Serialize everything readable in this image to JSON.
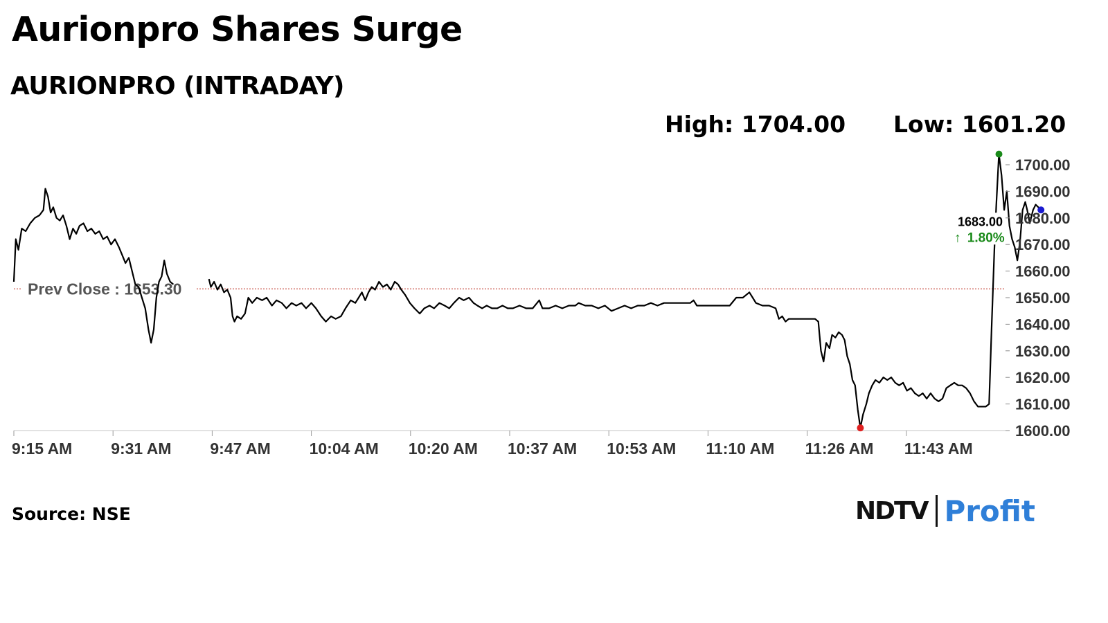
{
  "header": {
    "title": "Aurionpro Shares Surge",
    "subtitle": "AURIONPRO (INTRADAY)",
    "high_text": "High: 1704.00",
    "low_text": "Low: 1601.20"
  },
  "footer": {
    "source": "Source: NSE",
    "logo_ndtv": "NDTV",
    "logo_profit": "Profit"
  },
  "colors": {
    "line": "#000000",
    "prev_close_line": "#c0392b",
    "high_marker": "#1a8a1a",
    "low_marker": "#e02020",
    "last_marker": "#1a1ad0",
    "change_text": "#1a8a1a",
    "logo_profit_start": "#2f7fd8",
    "logo_profit_end": "#e0308a"
  },
  "chart_data": {
    "type": "line",
    "title": "AURIONPRO (INTRADAY)",
    "xlabel": "",
    "ylabel": "",
    "x_ticks": [
      "9:15 AM",
      "9:31 AM",
      "9:47 AM",
      "10:04 AM",
      "10:20 AM",
      "10:37 AM",
      "10:53 AM",
      "11:10 AM",
      "11:26 AM",
      "11:43 AM"
    ],
    "y_ticks": [
      "1600.00",
      "1610.00",
      "1620.00",
      "1630.00",
      "1640.00",
      "1650.00",
      "1660.00",
      "1670.00",
      "1680.00",
      "1690.00",
      "1700.00"
    ],
    "ylim": [
      1600,
      1700
    ],
    "x_minutes_range": [
      555,
      706
    ],
    "prev_close": 1653.3,
    "prev_close_label": "Prev Close : 1653.30",
    "high": 1704.0,
    "low": 1601.2,
    "last_value": "1683.00",
    "change_pct": "1.80%",
    "change_arrow": "↑",
    "series": [
      {
        "points": [
          [
            555,
            1656
          ],
          [
            555.3,
            1672
          ],
          [
            555.7,
            1668
          ],
          [
            556.2,
            1676
          ],
          [
            556.8,
            1675
          ],
          [
            557.5,
            1678
          ],
          [
            558.2,
            1680
          ],
          [
            558.9,
            1681
          ],
          [
            559.5,
            1683
          ],
          [
            559.8,
            1691
          ],
          [
            560.2,
            1688
          ],
          [
            560.6,
            1682
          ],
          [
            561.0,
            1684
          ],
          [
            561.5,
            1680
          ],
          [
            562.0,
            1679
          ],
          [
            562.5,
            1681
          ],
          [
            563.0,
            1677
          ],
          [
            563.5,
            1672
          ],
          [
            564.0,
            1676
          ],
          [
            564.5,
            1674
          ],
          [
            565.0,
            1677
          ],
          [
            565.6,
            1678
          ],
          [
            566.2,
            1675
          ],
          [
            566.8,
            1676
          ],
          [
            567.4,
            1674
          ],
          [
            568.0,
            1675
          ],
          [
            568.6,
            1672
          ],
          [
            569.2,
            1673
          ],
          [
            569.8,
            1670
          ],
          [
            570.4,
            1672
          ],
          [
            571.0,
            1669
          ],
          [
            571.5,
            1666
          ],
          [
            572.0,
            1663
          ],
          [
            572.5,
            1665
          ],
          [
            573.0,
            1660
          ],
          [
            573.5,
            1655
          ],
          [
            574.0,
            1654
          ],
          [
            574.5,
            1650
          ],
          [
            575.0,
            1646
          ],
          [
            575.5,
            1638
          ],
          [
            575.9,
            1633
          ],
          [
            576.3,
            1638
          ],
          [
            576.7,
            1650
          ],
          [
            577.1,
            1656
          ],
          [
            577.5,
            1658
          ],
          [
            577.9,
            1664
          ],
          [
            578.3,
            1659
          ],
          [
            578.8,
            1656
          ],
          [
            579.3,
            1655
          ],
          [
            584.7,
            1657
          ],
          [
            585.0,
            1654
          ],
          [
            585.5,
            1656
          ],
          [
            586.0,
            1653
          ],
          [
            586.5,
            1655
          ],
          [
            587.0,
            1652
          ],
          [
            587.5,
            1653
          ],
          [
            588.0,
            1650
          ],
          [
            588.3,
            1643
          ],
          [
            588.6,
            1641
          ],
          [
            589.0,
            1643
          ],
          [
            589.6,
            1642
          ],
          [
            590.2,
            1644
          ],
          [
            590.7,
            1650
          ],
          [
            591.3,
            1648
          ],
          [
            592.0,
            1650
          ],
          [
            592.8,
            1649
          ],
          [
            593.5,
            1650
          ],
          [
            594.3,
            1647
          ],
          [
            595.0,
            1649
          ],
          [
            595.8,
            1648
          ],
          [
            596.5,
            1646
          ],
          [
            597.3,
            1648
          ],
          [
            598.0,
            1647
          ],
          [
            598.8,
            1648
          ],
          [
            599.5,
            1646
          ],
          [
            600.3,
            1648
          ],
          [
            601.0,
            1646
          ],
          [
            601.8,
            1643
          ],
          [
            602.5,
            1641
          ],
          [
            603.3,
            1643
          ],
          [
            604.0,
            1642
          ],
          [
            604.8,
            1643
          ],
          [
            605.5,
            1646
          ],
          [
            606.3,
            1649
          ],
          [
            607.0,
            1648
          ],
          [
            607.5,
            1650
          ],
          [
            608.0,
            1652
          ],
          [
            608.5,
            1649
          ],
          [
            609.0,
            1652
          ],
          [
            609.5,
            1654
          ],
          [
            610.0,
            1653
          ],
          [
            610.6,
            1656
          ],
          [
            611.2,
            1654
          ],
          [
            611.8,
            1655
          ],
          [
            612.4,
            1653
          ],
          [
            613.0,
            1656
          ],
          [
            613.5,
            1655
          ],
          [
            614.0,
            1653
          ],
          [
            614.6,
            1651
          ],
          [
            615.3,
            1648
          ],
          [
            616.0,
            1646
          ],
          [
            616.8,
            1644
          ],
          [
            617.5,
            1646
          ],
          [
            618.3,
            1647
          ],
          [
            619.0,
            1646
          ],
          [
            619.8,
            1648
          ],
          [
            620.6,
            1647
          ],
          [
            621.3,
            1646
          ],
          [
            622.0,
            1648
          ],
          [
            622.8,
            1650
          ],
          [
            623.5,
            1649
          ],
          [
            624.3,
            1650
          ],
          [
            625.0,
            1648
          ],
          [
            625.6,
            1647
          ],
          [
            626.3,
            1646
          ],
          [
            627.0,
            1647
          ],
          [
            627.8,
            1646
          ],
          [
            628.6,
            1646
          ],
          [
            629.4,
            1647
          ],
          [
            630.2,
            1646
          ],
          [
            631.0,
            1646
          ],
          [
            632.0,
            1647
          ],
          [
            633.0,
            1646
          ],
          [
            634.0,
            1646
          ],
          [
            635.0,
            1649
          ],
          [
            635.5,
            1646
          ],
          [
            636.5,
            1646
          ],
          [
            637.5,
            1647
          ],
          [
            638.5,
            1646
          ],
          [
            639.5,
            1647
          ],
          [
            640.5,
            1647
          ],
          [
            641.0,
            1648
          ],
          [
            642.0,
            1647
          ],
          [
            643.0,
            1647
          ],
          [
            644.0,
            1646
          ],
          [
            645.0,
            1647
          ],
          [
            646.0,
            1645
          ],
          [
            647.0,
            1646
          ],
          [
            648.0,
            1647
          ],
          [
            649.0,
            1646
          ],
          [
            650.0,
            1647
          ],
          [
            651.0,
            1647
          ],
          [
            652.0,
            1648
          ],
          [
            653.0,
            1647
          ],
          [
            654.0,
            1648
          ],
          [
            655.0,
            1648
          ],
          [
            656.0,
            1648
          ],
          [
            657.0,
            1648
          ],
          [
            658.0,
            1648
          ],
          [
            658.5,
            1649
          ],
          [
            659.0,
            1647
          ],
          [
            660.0,
            1647
          ],
          [
            661.0,
            1647
          ],
          [
            662.0,
            1647
          ],
          [
            663.0,
            1647
          ],
          [
            664.0,
            1647
          ],
          [
            665.0,
            1650
          ],
          [
            666.0,
            1650
          ],
          [
            667.0,
            1652
          ],
          [
            667.5,
            1650
          ],
          [
            668.0,
            1648
          ],
          [
            669.0,
            1647
          ],
          [
            670.0,
            1647
          ],
          [
            671.0,
            1646
          ],
          [
            671.5,
            1642
          ],
          [
            672.0,
            1643
          ],
          [
            672.5,
            1641
          ],
          [
            673.0,
            1642
          ],
          [
            674.0,
            1642
          ],
          [
            675.0,
            1642
          ],
          [
            676.0,
            1642
          ],
          [
            677.0,
            1642
          ],
          [
            677.5,
            1641
          ],
          [
            677.9,
            1630
          ],
          [
            678.3,
            1626
          ],
          [
            678.7,
            1633
          ],
          [
            679.2,
            1631
          ],
          [
            679.6,
            1636
          ],
          [
            680.1,
            1635
          ],
          [
            680.6,
            1637
          ],
          [
            681.1,
            1636
          ],
          [
            681.5,
            1634
          ],
          [
            681.9,
            1628
          ],
          [
            682.3,
            1625
          ],
          [
            682.7,
            1619
          ],
          [
            683.1,
            1617
          ],
          [
            683.5,
            1608
          ],
          [
            683.9,
            1601
          ],
          [
            684.3,
            1606
          ],
          [
            684.8,
            1610
          ],
          [
            685.2,
            1614
          ],
          [
            685.7,
            1617
          ],
          [
            686.2,
            1619
          ],
          [
            686.8,
            1618
          ],
          [
            687.4,
            1620
          ],
          [
            688.0,
            1619
          ],
          [
            688.6,
            1620
          ],
          [
            689.2,
            1618
          ],
          [
            689.8,
            1617
          ],
          [
            690.4,
            1618
          ],
          [
            691.0,
            1615
          ],
          [
            691.6,
            1616
          ],
          [
            692.2,
            1614
          ],
          [
            692.8,
            1613
          ],
          [
            693.4,
            1614
          ],
          [
            694.0,
            1612
          ],
          [
            694.6,
            1614
          ],
          [
            695.2,
            1612
          ],
          [
            695.8,
            1611
          ],
          [
            696.4,
            1612
          ],
          [
            697.0,
            1616
          ],
          [
            697.6,
            1617
          ],
          [
            698.2,
            1618
          ],
          [
            698.8,
            1617
          ],
          [
            699.4,
            1617
          ],
          [
            700.0,
            1616
          ],
          [
            700.6,
            1614
          ],
          [
            701.2,
            1611
          ],
          [
            701.8,
            1609
          ],
          [
            702.4,
            1609
          ],
          [
            703.0,
            1609
          ],
          [
            703.5,
            1610
          ],
          [
            703.9,
            1640
          ],
          [
            704.3,
            1668
          ],
          [
            704.6,
            1685
          ],
          [
            705.0,
            1704
          ],
          [
            705.4,
            1696
          ],
          [
            705.8,
            1683
          ],
          [
            706.2,
            1690
          ],
          [
            706.6,
            1677
          ],
          [
            707.0,
            1672
          ],
          [
            707.4,
            1669
          ],
          [
            707.8,
            1664
          ],
          [
            708.2,
            1671
          ],
          [
            708.6,
            1683
          ],
          [
            709.0,
            1686
          ],
          [
            709.3,
            1683
          ],
          [
            709.7,
            1678
          ],
          [
            710.2,
            1683
          ],
          [
            710.6,
            1685
          ],
          [
            711.0,
            1684
          ],
          [
            711.4,
            1683
          ]
        ]
      }
    ]
  }
}
